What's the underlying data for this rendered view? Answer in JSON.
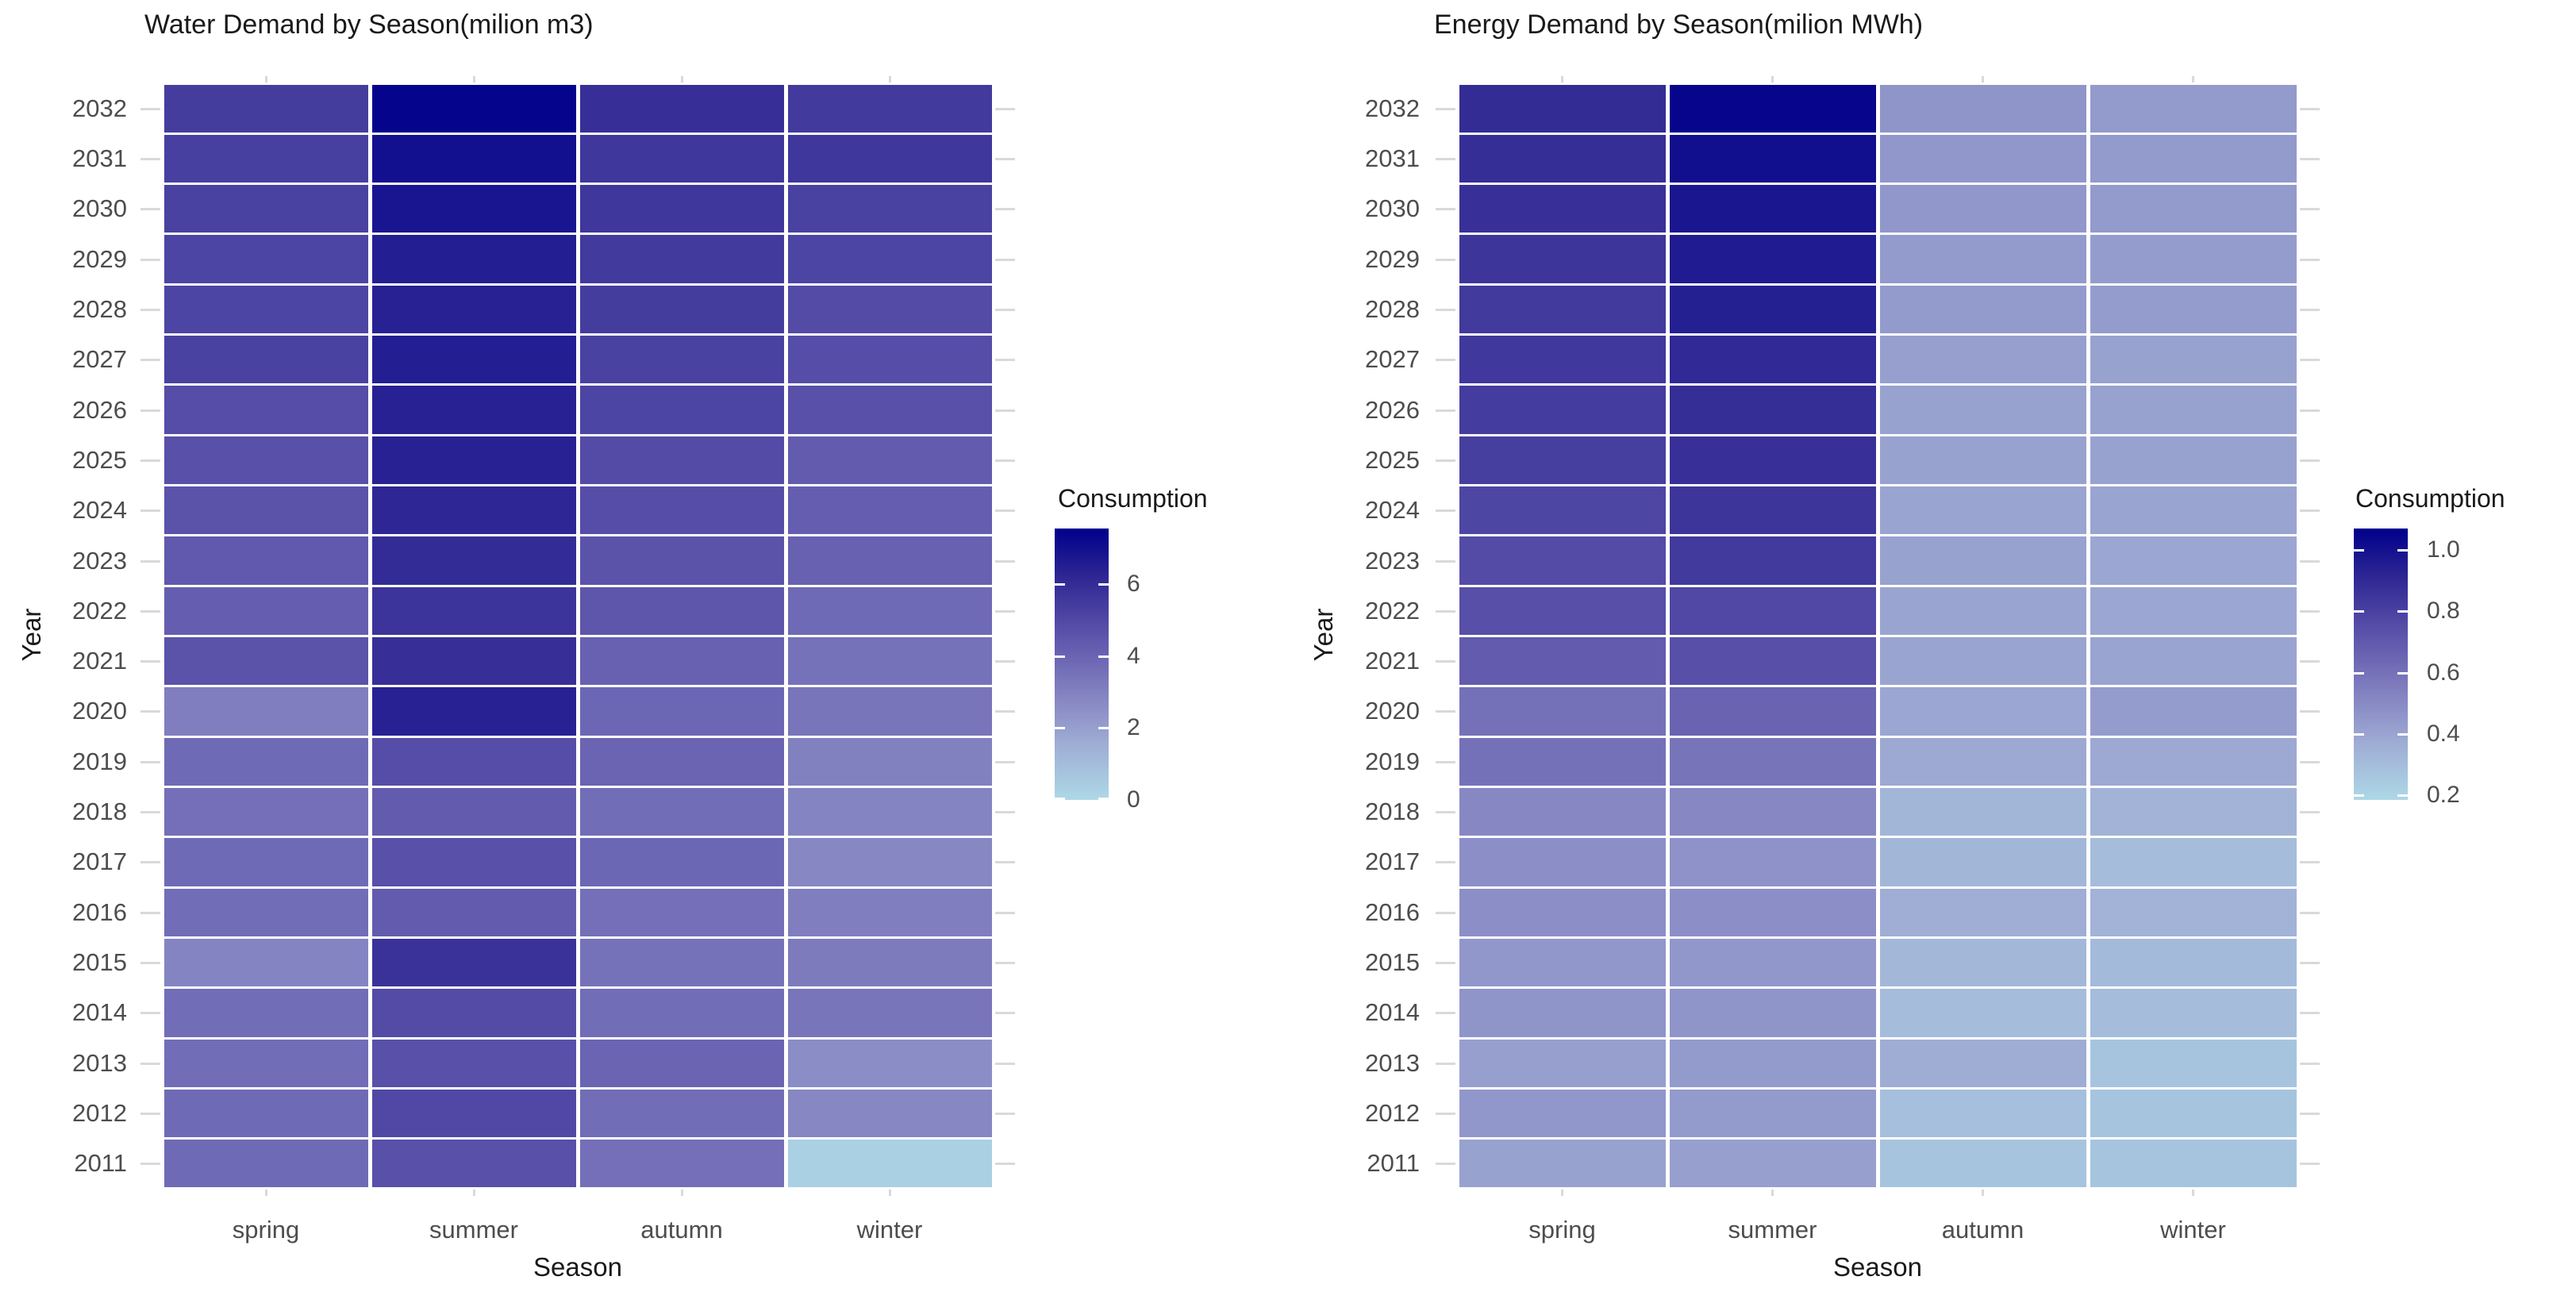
{
  "page": {
    "background": "#ffffff"
  },
  "chart_data": [
    {
      "type": "heatmap",
      "title": "Water Demand by Season(milion m3)",
      "xlabel": "Season",
      "ylabel": "Year",
      "legend": {
        "title": "Consumption",
        "tick_values": [
          6,
          4,
          2,
          0
        ],
        "tick_labels": [
          "6",
          "4",
          "2",
          "0"
        ],
        "position": "right"
      },
      "scale": {
        "min": 0,
        "max": 7.55,
        "low_color": "#ADD8E6",
        "high_color": "#00008B"
      },
      "grid": "off",
      "categories_x": [
        "spring",
        "summer",
        "autumn",
        "winter"
      ],
      "categories_y": [
        "2032",
        "2031",
        "2030",
        "2029",
        "2028",
        "2027",
        "2026",
        "2025",
        "2024",
        "2023",
        "2022",
        "2021",
        "2020",
        "2019",
        "2018",
        "2017",
        "2016",
        "2015",
        "2014",
        "2013",
        "2012",
        "2011"
      ],
      "values": [
        [
          5.4,
          7.4,
          5.9,
          5.5
        ],
        [
          5.3,
          7.0,
          5.6,
          5.6
        ],
        [
          5.2,
          6.8,
          5.6,
          5.2
        ],
        [
          5.1,
          6.5,
          5.5,
          5.1
        ],
        [
          5.1,
          6.4,
          5.4,
          4.9
        ],
        [
          5.2,
          6.5,
          5.2,
          4.8
        ],
        [
          4.8,
          6.4,
          5.1,
          4.7
        ],
        [
          4.7,
          6.4,
          4.9,
          4.3
        ],
        [
          4.6,
          6.2,
          4.8,
          4.2
        ],
        [
          4.4,
          6.0,
          4.6,
          4.1
        ],
        [
          4.2,
          5.7,
          4.5,
          3.8
        ],
        [
          4.6,
          5.9,
          4.1,
          3.5
        ],
        [
          3.1,
          6.4,
          3.9,
          3.4
        ],
        [
          3.8,
          4.8,
          4.0,
          3.0
        ],
        [
          3.6,
          4.3,
          3.7,
          2.9
        ],
        [
          3.8,
          4.7,
          3.9,
          2.8
        ],
        [
          3.7,
          4.3,
          3.6,
          3.1
        ],
        [
          2.9,
          5.8,
          3.5,
          3.2
        ],
        [
          3.7,
          4.9,
          3.7,
          3.4
        ],
        [
          3.7,
          4.7,
          4.0,
          2.6
        ],
        [
          3.8,
          5.0,
          3.7,
          2.8
        ],
        [
          3.8,
          4.7,
          3.6,
          0.3
        ]
      ]
    },
    {
      "type": "heatmap",
      "title": "Energy Demand by Season(milion MWh)",
      "xlabel": "Season",
      "ylabel": "Year",
      "legend": {
        "title": "Consumption",
        "tick_values": [
          1.0,
          0.8,
          0.6,
          0.4,
          0.2
        ],
        "tick_labels": [
          "1.0",
          "0.8",
          "0.6",
          "0.4",
          "0.2"
        ],
        "position": "right"
      },
      "scale": {
        "min": 0.185,
        "max": 1.07,
        "low_color": "#ADD8E6",
        "high_color": "#00008B"
      },
      "grid": "off",
      "categories_x": [
        "spring",
        "summer",
        "autumn",
        "winter"
      ],
      "categories_y": [
        "2032",
        "2031",
        "2030",
        "2029",
        "2028",
        "2027",
        "2026",
        "2025",
        "2024",
        "2023",
        "2022",
        "2021",
        "2020",
        "2019",
        "2018",
        "2017",
        "2016",
        "2015",
        "2014",
        "2013",
        "2012",
        "2011"
      ],
      "values": [
        [
          0.89,
          1.05,
          0.46,
          0.44
        ],
        [
          0.88,
          1.01,
          0.45,
          0.44
        ],
        [
          0.87,
          0.98,
          0.45,
          0.44
        ],
        [
          0.85,
          0.96,
          0.44,
          0.43
        ],
        [
          0.83,
          0.94,
          0.44,
          0.43
        ],
        [
          0.84,
          0.9,
          0.42,
          0.41
        ],
        [
          0.82,
          0.88,
          0.41,
          0.41
        ],
        [
          0.81,
          0.87,
          0.41,
          0.41
        ],
        [
          0.78,
          0.85,
          0.4,
          0.4
        ],
        [
          0.76,
          0.83,
          0.41,
          0.39
        ],
        [
          0.74,
          0.77,
          0.4,
          0.39
        ],
        [
          0.69,
          0.74,
          0.4,
          0.4
        ],
        [
          0.6,
          0.66,
          0.39,
          0.43
        ],
        [
          0.6,
          0.59,
          0.38,
          0.38
        ],
        [
          0.51,
          0.51,
          0.33,
          0.34
        ],
        [
          0.48,
          0.47,
          0.33,
          0.3
        ],
        [
          0.48,
          0.48,
          0.36,
          0.34
        ],
        [
          0.45,
          0.45,
          0.32,
          0.31
        ],
        [
          0.46,
          0.46,
          0.3,
          0.3
        ],
        [
          0.42,
          0.44,
          0.37,
          0.27
        ],
        [
          0.45,
          0.44,
          0.29,
          0.27
        ],
        [
          0.41,
          0.42,
          0.27,
          0.27
        ]
      ]
    }
  ],
  "gradient_stops": [
    {
      "t": 0.0,
      "color": "#ADD8E6"
    },
    {
      "t": 0.2,
      "color": "#A0AED5"
    },
    {
      "t": 0.4,
      "color": "#8280C0"
    },
    {
      "t": 0.6,
      "color": "#5D55AB"
    },
    {
      "t": 0.8,
      "color": "#332B95"
    },
    {
      "t": 1.0,
      "color": "#00008B"
    }
  ]
}
